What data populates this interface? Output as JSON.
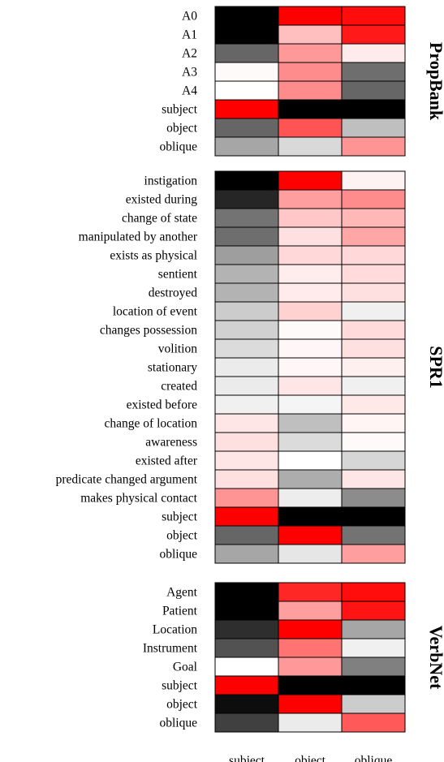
{
  "chart_data": {
    "type": "heatmap",
    "columns": [
      "subject",
      "object",
      "oblique"
    ],
    "colors": {
      "high_similarity": "#000000",
      "neutral": "#ffffff",
      "high_difference": "#ff0000"
    },
    "scale_note": "negative = grey-to-black, positive = pink-to-red",
    "panels": [
      {
        "title": "PropBank",
        "rows": [
          {
            "label": "A0",
            "values": [
              -1.0,
              1.0,
              0.95
            ]
          },
          {
            "label": "A1",
            "values": [
              -1.0,
              0.25,
              0.9
            ]
          },
          {
            "label": "A2",
            "values": [
              -0.6,
              0.4,
              0.08
            ]
          },
          {
            "label": "A3",
            "values": [
              0.02,
              0.45,
              -0.57
            ]
          },
          {
            "label": "A4",
            "values": [
              0.0,
              0.45,
              -0.6
            ]
          },
          {
            "label": "subject",
            "values": [
              1.0,
              -1.0,
              -1.0
            ]
          },
          {
            "label": "object",
            "values": [
              -0.6,
              0.67,
              -0.25
            ]
          },
          {
            "label": "oblique",
            "values": [
              -0.35,
              -0.15,
              0.42
            ]
          }
        ]
      },
      {
        "title": "SPR1",
        "rows": [
          {
            "label": "instigation",
            "values": [
              -1.0,
              1.0,
              0.05
            ]
          },
          {
            "label": "existed during",
            "values": [
              -0.85,
              0.38,
              0.45
            ]
          },
          {
            "label": "change of state",
            "values": [
              -0.55,
              0.22,
              0.28
            ]
          },
          {
            "label": "manipulated by another",
            "values": [
              -0.57,
              0.12,
              0.35
            ]
          },
          {
            "label": "exists as physical",
            "values": [
              -0.38,
              0.15,
              0.15
            ]
          },
          {
            "label": "sentient",
            "values": [
              -0.3,
              0.07,
              0.14
            ]
          },
          {
            "label": "destroyed",
            "values": [
              -0.3,
              0.08,
              0.12
            ]
          },
          {
            "label": "location of event",
            "values": [
              -0.2,
              0.18,
              -0.06
            ]
          },
          {
            "label": "changes possession",
            "values": [
              -0.18,
              0.02,
              0.14
            ]
          },
          {
            "label": "volition",
            "values": [
              -0.14,
              0.03,
              0.12
            ]
          },
          {
            "label": "stationary",
            "values": [
              -0.08,
              0.03,
              0.06
            ]
          },
          {
            "label": "created",
            "values": [
              -0.08,
              0.1,
              -0.06
            ]
          },
          {
            "label": "existed before",
            "values": [
              -0.06,
              -0.04,
              0.09
            ]
          },
          {
            "label": "change of location",
            "values": [
              0.1,
              -0.25,
              0.04
            ]
          },
          {
            "label": "awareness",
            "values": [
              0.12,
              -0.14,
              0.02
            ]
          },
          {
            "label": "existed after",
            "values": [
              0.1,
              0.0,
              -0.16
            ]
          },
          {
            "label": "predicate changed argument",
            "values": [
              0.12,
              -0.32,
              0.1
            ]
          },
          {
            "label": "makes physical contact",
            "values": [
              0.42,
              -0.07,
              -0.45
            ]
          },
          {
            "label": "subject",
            "values": [
              1.0,
              -1.0,
              -1.0
            ]
          },
          {
            "label": "object",
            "values": [
              -0.6,
              1.0,
              -0.55
            ]
          },
          {
            "label": "oblique",
            "values": [
              -0.35,
              -0.1,
              0.38
            ]
          }
        ]
      },
      {
        "title": "VerbNet",
        "rows": [
          {
            "label": "Agent",
            "values": [
              -1.0,
              0.85,
              0.95
            ]
          },
          {
            "label": "Patient",
            "values": [
              -1.0,
              0.38,
              0.92
            ]
          },
          {
            "label": "Location",
            "values": [
              -0.82,
              1.0,
              -0.35
            ]
          },
          {
            "label": "Instrument",
            "values": [
              -0.68,
              0.55,
              -0.06
            ]
          },
          {
            "label": "Goal",
            "values": [
              0.0,
              0.4,
              -0.5
            ]
          },
          {
            "label": "subject",
            "values": [
              1.0,
              -1.0,
              -1.0
            ]
          },
          {
            "label": "object",
            "values": [
              -0.95,
              1.0,
              -0.2
            ]
          },
          {
            "label": "oblique",
            "values": [
              -0.75,
              -0.08,
              0.65
            ]
          }
        ]
      }
    ]
  }
}
